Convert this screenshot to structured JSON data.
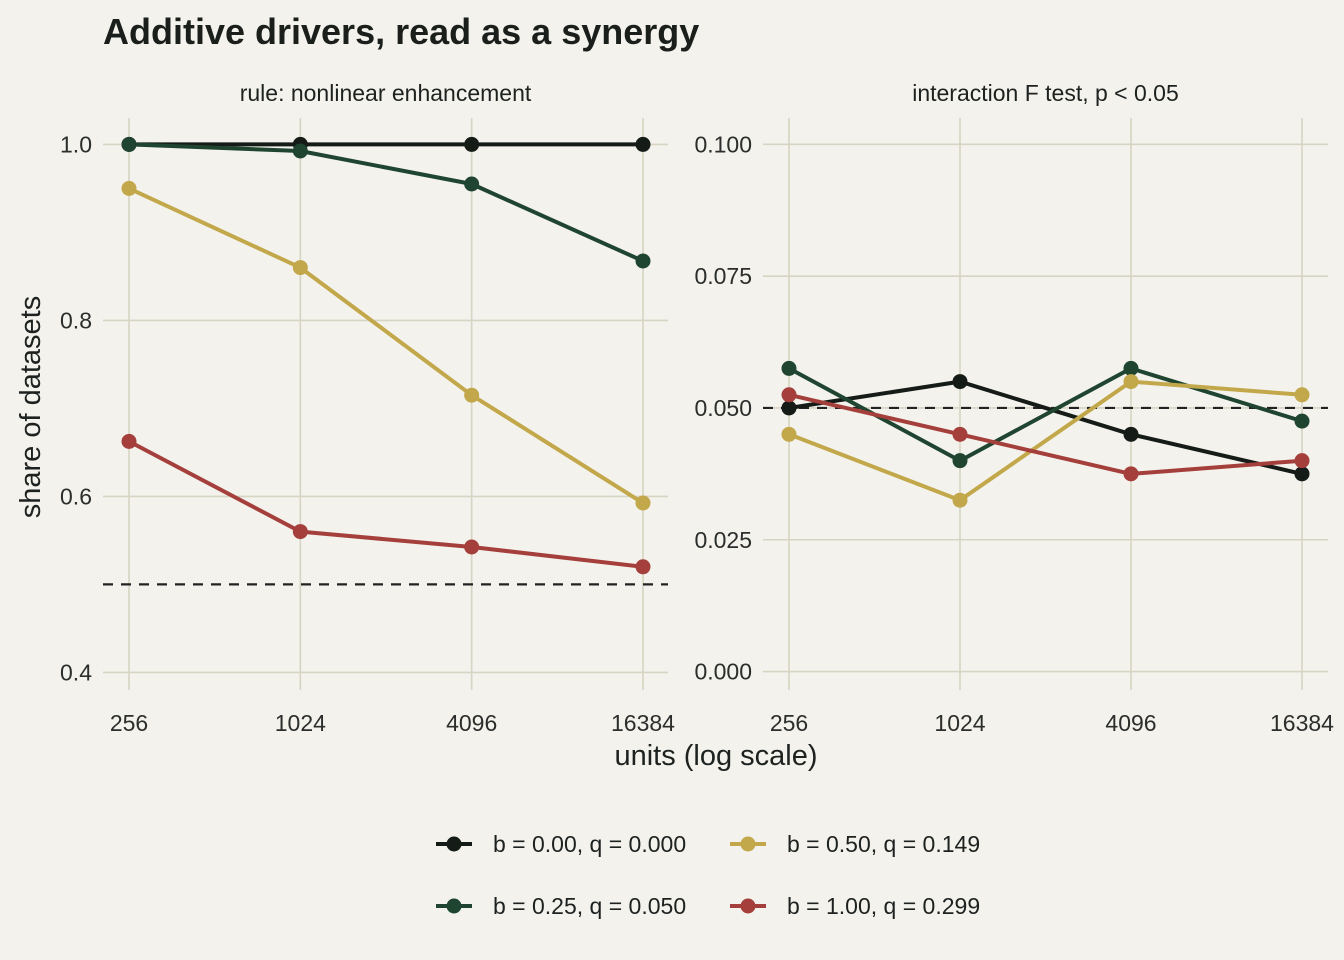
{
  "chart_data": {
    "type": "line",
    "title": "Additive drivers, read as a synergy",
    "xlabel": "units (log scale)",
    "ylabel": "share of datasets",
    "x_scale": "log2",
    "x": [
      256,
      1024,
      4096,
      16384
    ],
    "x_tick_labels": [
      "256",
      "1024",
      "4096",
      "16384"
    ],
    "legend_position": "bottom",
    "grid": true,
    "series": [
      {
        "name": "b = 0.00, q = 0.000",
        "color": "#151b17"
      },
      {
        "name": "b = 0.25, q = 0.050",
        "color": "#1f4530"
      },
      {
        "name": "b = 0.50, q = 0.149",
        "color": "#c2a84a"
      },
      {
        "name": "b = 1.00, q = 0.299",
        "color": "#a53f3c"
      }
    ],
    "panels": [
      {
        "strip": "rule: nonlinear enhancement",
        "ylim": [
          0.38,
          1.03
        ],
        "y_ticks": [
          0.4,
          0.6,
          0.8,
          1.0
        ],
        "y_tick_labels": [
          "0.4",
          "0.6",
          "0.8",
          "1.0"
        ],
        "reference_line": 0.5,
        "values": [
          [
            1.0,
            1.0,
            1.0,
            1.0
          ],
          [
            1.0,
            0.9925,
            0.955,
            0.8675
          ],
          [
            0.95,
            0.86,
            0.715,
            0.5925
          ],
          [
            0.6625,
            0.56,
            0.5425,
            0.52
          ]
        ]
      },
      {
        "strip": "interaction F test, p < 0.05",
        "ylim": [
          -0.0035,
          0.105
        ],
        "y_ticks": [
          0.0,
          0.025,
          0.05,
          0.075,
          0.1
        ],
        "y_tick_labels": [
          "0.000",
          "0.025",
          "0.050",
          "0.075",
          "0.100"
        ],
        "reference_line": 0.05,
        "values": [
          [
            0.05,
            0.055,
            0.045,
            0.0375
          ],
          [
            0.0575,
            0.04,
            0.0575,
            0.0475
          ],
          [
            0.045,
            0.0325,
            0.055,
            0.0525
          ],
          [
            0.0525,
            0.045,
            0.0375,
            0.04
          ]
        ]
      }
    ]
  }
}
